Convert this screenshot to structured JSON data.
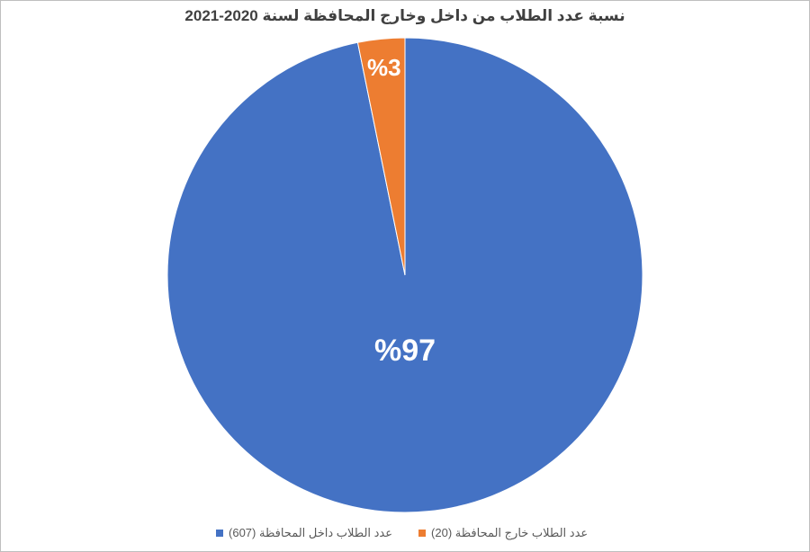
{
  "chart_data": {
    "type": "pie",
    "title": "نسبة عدد الطلاب من داخل وخارج المحافظة لسنة 2020-2021",
    "slices": [
      {
        "name": "عدد الطلاب داخل المحافظة  (607)",
        "value": 607,
        "label": "%97",
        "color": "#4472C4"
      },
      {
        "name": "عدد الطلاب خارج المحافظة (20)",
        "value": 20,
        "label": "%3",
        "color": "#ED7D31"
      }
    ],
    "legend_position": "bottom"
  }
}
